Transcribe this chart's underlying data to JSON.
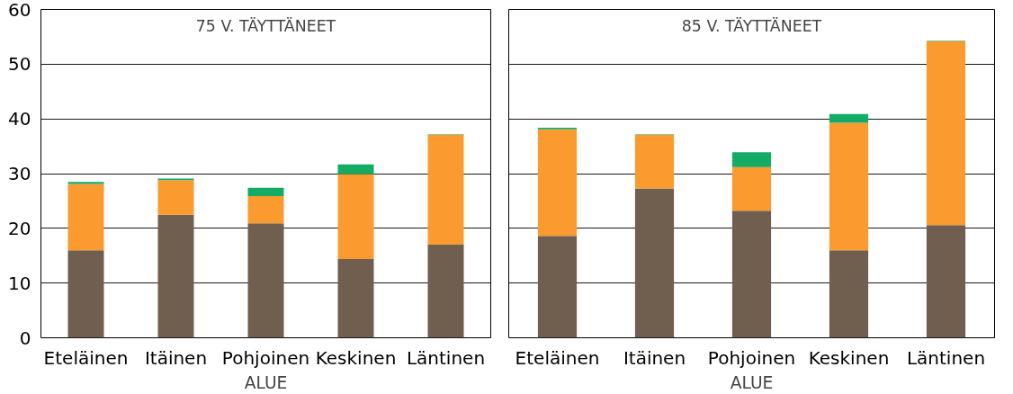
{
  "chart_data": [
    {
      "type": "bar",
      "stacked": true,
      "title": "75 V. TÄYTTÄNEET",
      "xlabel": "ALUE",
      "categories": [
        "Eteläinen",
        "Itäinen",
        "Pohjoinen",
        "Keskinen",
        "Läntinen"
      ],
      "series": [
        {
          "color": "#705e4f",
          "values": [
            16.0,
            22.5,
            20.9,
            14.4,
            17.0
          ]
        },
        {
          "color": "#fb9a2e",
          "values": [
            12.1,
            6.3,
            5.0,
            15.5,
            20.1
          ]
        },
        {
          "color": "#14ab64",
          "values": [
            0.4,
            0.3,
            1.5,
            1.8,
            0.1
          ]
        }
      ],
      "ylim": [
        0,
        60
      ],
      "yticks": [
        0,
        10,
        20,
        30,
        40,
        50,
        60
      ],
      "grid": "y"
    },
    {
      "type": "bar",
      "stacked": true,
      "title": "85 V. TÄYTTÄNEET",
      "xlabel": "ALUE",
      "categories": [
        "Eteläinen",
        "Itäinen",
        "Pohjoinen",
        "Keskinen",
        "Läntinen"
      ],
      "series": [
        {
          "color": "#705e4f",
          "values": [
            18.6,
            27.3,
            23.2,
            16.0,
            20.6
          ]
        },
        {
          "color": "#fb9a2e",
          "values": [
            19.5,
            9.8,
            8.0,
            23.3,
            33.6
          ]
        },
        {
          "color": "#14ab64",
          "values": [
            0.3,
            0.1,
            2.7,
            1.6,
            0.1
          ]
        }
      ],
      "ylim": [
        0,
        60
      ],
      "yticks": [
        0,
        10,
        20,
        30,
        40,
        50,
        60
      ],
      "grid": "y",
      "tick_labels": "x"
    }
  ]
}
